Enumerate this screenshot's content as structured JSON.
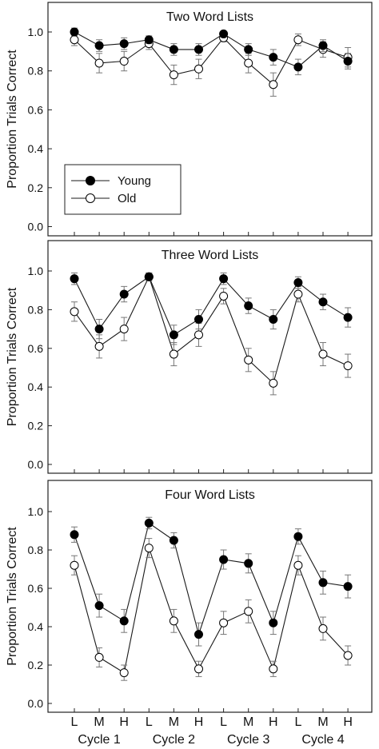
{
  "chart_data": [
    {
      "type": "line",
      "title": "Two Word Lists",
      "ylabel": "Proportion Trials Correct",
      "ylim": [
        0,
        1.1
      ],
      "yticks": [
        "0.0",
        "0.2",
        "0.4",
        "0.6",
        "0.8",
        "1.0"
      ],
      "legend": {
        "placement": "lower-left",
        "entries": [
          "Young",
          "Old"
        ]
      },
      "series": [
        {
          "name": "Young",
          "marker": "filled-circle",
          "values": [
            1.0,
            0.93,
            0.94,
            0.96,
            0.91,
            0.91,
            0.99,
            0.91,
            0.87,
            0.82,
            0.93,
            0.85
          ],
          "errors": [
            0.02,
            0.03,
            0.03,
            0.02,
            0.03,
            0.03,
            0.01,
            0.03,
            0.04,
            0.04,
            0.03,
            0.04
          ]
        },
        {
          "name": "Old",
          "marker": "open-circle",
          "values": [
            0.96,
            0.84,
            0.85,
            0.94,
            0.78,
            0.81,
            0.97,
            0.84,
            0.73,
            0.96,
            0.91,
            0.87
          ],
          "errors": [
            0.03,
            0.05,
            0.05,
            0.03,
            0.05,
            0.05,
            0.02,
            0.05,
            0.06,
            0.03,
            0.04,
            0.05
          ]
        }
      ]
    },
    {
      "type": "line",
      "title": "Three Word Lists",
      "ylabel": "Proportion Trials Correct",
      "ylim": [
        0,
        1.1
      ],
      "yticks": [
        "0.0",
        "0.2",
        "0.4",
        "0.6",
        "0.8",
        "1.0"
      ],
      "series": [
        {
          "name": "Young",
          "marker": "filled-circle",
          "values": [
            0.96,
            0.7,
            0.88,
            0.97,
            0.67,
            0.75,
            0.96,
            0.82,
            0.75,
            0.94,
            0.84,
            0.76
          ],
          "errors": [
            0.03,
            0.05,
            0.04,
            0.02,
            0.05,
            0.05,
            0.03,
            0.04,
            0.05,
            0.03,
            0.04,
            0.05
          ]
        },
        {
          "name": "Old",
          "marker": "open-circle",
          "values": [
            0.79,
            0.61,
            0.7,
            0.97,
            0.57,
            0.67,
            0.87,
            0.54,
            0.42,
            0.88,
            0.57,
            0.51
          ],
          "errors": [
            0.05,
            0.06,
            0.06,
            0.02,
            0.06,
            0.06,
            0.04,
            0.06,
            0.06,
            0.04,
            0.06,
            0.06
          ]
        }
      ]
    },
    {
      "type": "line",
      "title": "Four Word Lists",
      "ylabel": "Proportion Trials Correct",
      "ylim": [
        0,
        1.1
      ],
      "yticks": [
        "0.0",
        "0.2",
        "0.4",
        "0.6",
        "0.8",
        "1.0"
      ],
      "categories": [
        "L",
        "M",
        "H",
        "L",
        "M",
        "H",
        "L",
        "M",
        "H",
        "L",
        "M",
        "H"
      ],
      "groups": [
        "Cycle 1",
        "Cycle 2",
        "Cycle 3",
        "Cycle 4"
      ],
      "series": [
        {
          "name": "Young",
          "marker": "filled-circle",
          "values": [
            0.88,
            0.51,
            0.43,
            0.94,
            0.85,
            0.36,
            0.75,
            0.73,
            0.42,
            0.87,
            0.63,
            0.61
          ],
          "errors": [
            0.04,
            0.06,
            0.06,
            0.03,
            0.04,
            0.06,
            0.05,
            0.05,
            0.06,
            0.04,
            0.06,
            0.06
          ]
        },
        {
          "name": "Old",
          "marker": "open-circle",
          "values": [
            0.72,
            0.24,
            0.16,
            0.81,
            0.43,
            0.18,
            0.42,
            0.48,
            0.18,
            0.72,
            0.39,
            0.25
          ],
          "errors": [
            0.05,
            0.05,
            0.04,
            0.05,
            0.06,
            0.04,
            0.06,
            0.06,
            0.04,
            0.05,
            0.06,
            0.05
          ]
        }
      ]
    }
  ],
  "colors": {
    "young_fill": "#000000",
    "old_fill": "#ffffff",
    "line": "#1a1a1a",
    "error_bar": "#777777",
    "frame": "#222222"
  }
}
